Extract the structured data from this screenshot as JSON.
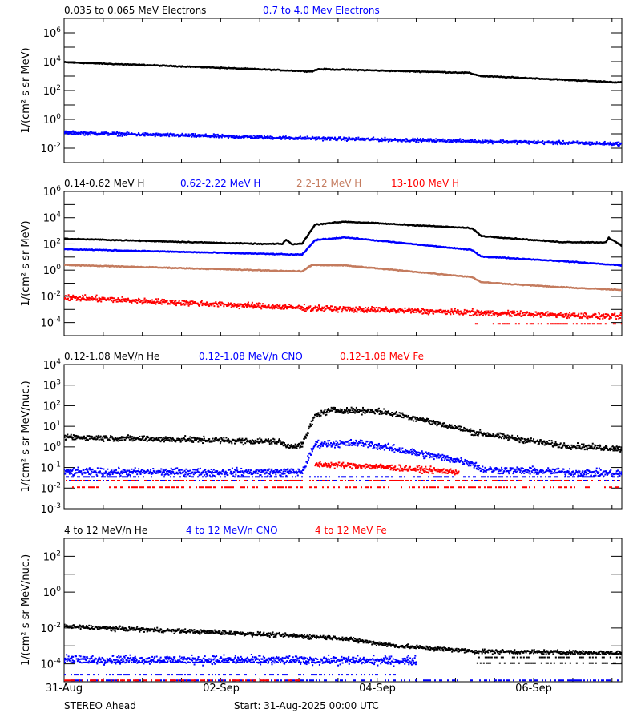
{
  "chart_data": [
    {
      "type": "scatter",
      "ylabel": "1/(cm² s sr MeV)",
      "yscale": "log",
      "ylim": [
        0.001,
        10000000.0
      ],
      "ytick_exponents": [
        6,
        4,
        2,
        0,
        -2
      ],
      "series": [
        {
          "name": "0.035 to 0.065 MeV Electrons",
          "color": "#000000",
          "style": "line",
          "spread": 0.03,
          "points": [
            [
              "2025-08-31 00:00",
              9000
            ],
            [
              "2025-09-01 12:00",
              4700
            ],
            [
              "2025-09-03 04:00",
              2100
            ],
            [
              "2025-09-03 06:00",
              3000
            ],
            [
              "2025-09-03 16:00",
              2700
            ],
            [
              "2025-09-05 04:00",
              1700
            ],
            [
              "2025-09-05 08:00",
              1000
            ],
            [
              "2025-09-06 00:00",
              700
            ],
            [
              "2025-09-07 03:00",
              360
            ]
          ]
        },
        {
          "name": "0.7 to 4.0 Mev Electrons",
          "color": "#0000ff",
          "style": "points",
          "spread": 0.1,
          "points": [
            [
              "2025-08-31 00:00",
              0.12
            ],
            [
              "2025-09-03 00:00",
              0.05
            ],
            [
              "2025-09-07 03:00",
              0.02
            ]
          ]
        }
      ]
    },
    {
      "type": "scatter",
      "ylabel": "1/(cm² s sr MeV)",
      "yscale": "log",
      "ylim": [
        1e-05,
        1000000.0
      ],
      "ytick_exponents": [
        6,
        4,
        2,
        0,
        -2,
        -4
      ],
      "series": [
        {
          "name": "0.14-0.62 MeV H",
          "color": "#000000",
          "style": "line",
          "spread": 0.03,
          "points": [
            [
              "2025-08-31 00:00",
              250
            ],
            [
              "2025-09-02 12:00",
              100
            ],
            [
              "2025-09-02 19:00",
              100
            ],
            [
              "2025-09-02 20:00",
              220
            ],
            [
              "2025-09-02 22:00",
              90
            ],
            [
              "2025-09-03 01:00",
              110
            ],
            [
              "2025-09-03 05:00",
              3000
            ],
            [
              "2025-09-03 14:00",
              5000
            ],
            [
              "2025-09-05 05:00",
              1600
            ],
            [
              "2025-09-05 08:00",
              400
            ],
            [
              "2025-09-06 08:00",
              140
            ],
            [
              "2025-09-06 22:00",
              130
            ],
            [
              "2025-09-06 23:00",
              300
            ],
            [
              "2025-09-07 03:00",
              70
            ]
          ]
        },
        {
          "name": "0.62-2.22 MeV H",
          "color": "#0000ff",
          "style": "line",
          "spread": 0.03,
          "points": [
            [
              "2025-08-31 00:00",
              40
            ],
            [
              "2025-09-03 01:00",
              15
            ],
            [
              "2025-09-03 05:00",
              200
            ],
            [
              "2025-09-03 14:00",
              320
            ],
            [
              "2025-09-05 05:00",
              35
            ],
            [
              "2025-09-05 08:00",
              11
            ],
            [
              "2025-09-06 08:00",
              5
            ],
            [
              "2025-09-07 03:00",
              2.3
            ]
          ]
        },
        {
          "name": "2.2-12 MeV H",
          "color": "#c47b5e",
          "style": "line",
          "spread": 0.03,
          "points": [
            [
              "2025-08-31 00:00",
              2.5
            ],
            [
              "2025-09-03 01:00",
              0.8
            ],
            [
              "2025-09-03 04:00",
              2.5
            ],
            [
              "2025-09-03 14:00",
              2.3
            ],
            [
              "2025-09-05 05:00",
              0.3
            ],
            [
              "2025-09-05 08:00",
              0.12
            ],
            [
              "2025-09-06 08:00",
              0.05
            ],
            [
              "2025-09-07 03:00",
              0.03
            ]
          ]
        },
        {
          "name": "13-100 MeV H",
          "color": "#ff0000",
          "style": "points",
          "spread": 0.18,
          "points": [
            [
              "2025-08-31 00:00",
              0.008
            ],
            [
              "2025-09-03 01:00",
              0.0013
            ],
            [
              "2025-09-07 03:00",
              0.00028
            ]
          ],
          "floors": [
            {
              "value": 8e-05,
              "from": "2025-09-05 06:00",
              "to": "2025-09-07 03:00"
            }
          ]
        }
      ]
    },
    {
      "type": "scatter",
      "ylabel": "1/(cm² s sr MeV/nuc.)",
      "yscale": "log",
      "ylim": [
        0.001,
        10000.0
      ],
      "ytick_exponents": [
        4,
        3,
        2,
        1,
        0,
        -1,
        -2,
        -3
      ],
      "series": [
        {
          "name": "0.12-1.08 MeV/n He",
          "color": "#000000",
          "style": "points",
          "spread": 0.12,
          "points": [
            [
              "2025-08-31 00:00",
              3
            ],
            [
              "2025-09-02 18:00",
              1.8
            ],
            [
              "2025-09-02 20:00",
              1.1
            ],
            [
              "2025-09-03 01:00",
              1.2
            ],
            [
              "2025-09-03 05:00",
              35
            ],
            [
              "2025-09-03 10:00",
              60
            ],
            [
              "2025-09-04 00:00",
              55
            ],
            [
              "2025-09-04 12:00",
              25
            ],
            [
              "2025-09-05 06:00",
              5
            ],
            [
              "2025-09-06 08:00",
              1.2
            ],
            [
              "2025-09-07 03:00",
              0.8
            ]
          ]
        },
        {
          "name": "0.12-1.08 MeV/n CNO",
          "color": "#0000ff",
          "style": "points",
          "spread": 0.15,
          "points": [
            [
              "2025-08-31 00:00",
              0.06
            ],
            [
              "2025-09-03 01:00",
              0.06
            ],
            [
              "2025-09-03 05:00",
              1.4
            ],
            [
              "2025-09-03 20:00",
              1.5
            ],
            [
              "2025-09-04 12:00",
              0.5
            ],
            [
              "2025-09-05 05:00",
              0.17
            ],
            [
              "2025-09-05 08:00",
              0.08
            ],
            [
              "2025-09-07 03:00",
              0.05
            ]
          ],
          "floors": [
            {
              "value": 0.035,
              "from": "2025-08-31 00:00",
              "to": "2025-09-07 03:00"
            },
            {
              "value": 0.023,
              "from": "2025-08-31 00:00",
              "to": "2025-09-07 03:00"
            }
          ]
        },
        {
          "name": "0.12-1.08 MeV Fe",
          "color": "#ff0000",
          "style": "points",
          "spread": 0.12,
          "points": [
            [
              "2025-09-03 05:00",
              0.14
            ],
            [
              "2025-09-03 20:00",
              0.12
            ],
            [
              "2025-09-05 01:00",
              0.06
            ]
          ],
          "floors": [
            {
              "value": 0.023,
              "from": "2025-08-31 00:00",
              "to": "2025-09-07 03:00"
            },
            {
              "value": 0.011,
              "from": "2025-08-31 00:00",
              "to": "2025-09-07 03:00"
            }
          ]
        }
      ]
    },
    {
      "type": "scatter",
      "ylabel": "1/(cm² s sr MeV/nuc.)",
      "yscale": "log",
      "ylim": [
        1e-05,
        1000.0
      ],
      "ytick_exponents": [
        2,
        0,
        -2,
        -4
      ],
      "series": [
        {
          "name": "4 to 12 MeV/n He",
          "color": "#000000",
          "style": "points",
          "spread": 0.1,
          "points": [
            [
              "2025-08-31 00:00",
              0.012
            ],
            [
              "2025-09-02 06:00",
              0.005
            ],
            [
              "2025-09-03 12:00",
              0.0028
            ],
            [
              "2025-09-04 06:00",
              0.001
            ],
            [
              "2025-09-05 06:00",
              0.0005
            ],
            [
              "2025-09-07 03:00",
              0.0004
            ]
          ],
          "floors": [
            {
              "value": 0.00023,
              "from": "2025-09-05 06:00",
              "to": "2025-09-07 03:00"
            },
            {
              "value": 0.00011,
              "from": "2025-09-05 06:00",
              "to": "2025-09-07 03:00"
            }
          ]
        },
        {
          "name": "4 to 12 MeV/n CNO",
          "color": "#0000ff",
          "style": "points",
          "spread": 0.2,
          "points": [
            [
              "2025-08-31 00:00",
              0.00018
            ],
            [
              "2025-09-04 12:00",
              0.00015
            ]
          ],
          "floors": [
            {
              "value": 0.00012,
              "from": "2025-08-31 00:00",
              "to": "2025-09-04 12:00"
            },
            {
              "value": 2.5e-05,
              "from": "2025-08-31 00:00",
              "to": "2025-09-04 06:00"
            },
            {
              "value": 1.2e-05,
              "from": "2025-08-31 00:00",
              "to": "2025-09-07 03:00"
            }
          ]
        },
        {
          "name": "4 to 12 MeV Fe",
          "color": "#ff0000",
          "style": "points",
          "spread": 0.0,
          "points": [],
          "floors": [
            {
              "value": 1.2e-05,
              "from": "2025-08-31 00:00",
              "to": "2025-09-03 00:00"
            }
          ]
        }
      ]
    }
  ],
  "x_axis": {
    "type": "date",
    "xlim": [
      "2025-08-31 00:00",
      "2025-09-07 03:00"
    ],
    "tick_labels": [
      "31-Aug",
      "02-Sep",
      "04-Sep",
      "06-Sep"
    ]
  },
  "footer": {
    "spacecraft": "STEREO Ahead",
    "start": "Start: 31-Aug-2025 00:00 UTC"
  }
}
